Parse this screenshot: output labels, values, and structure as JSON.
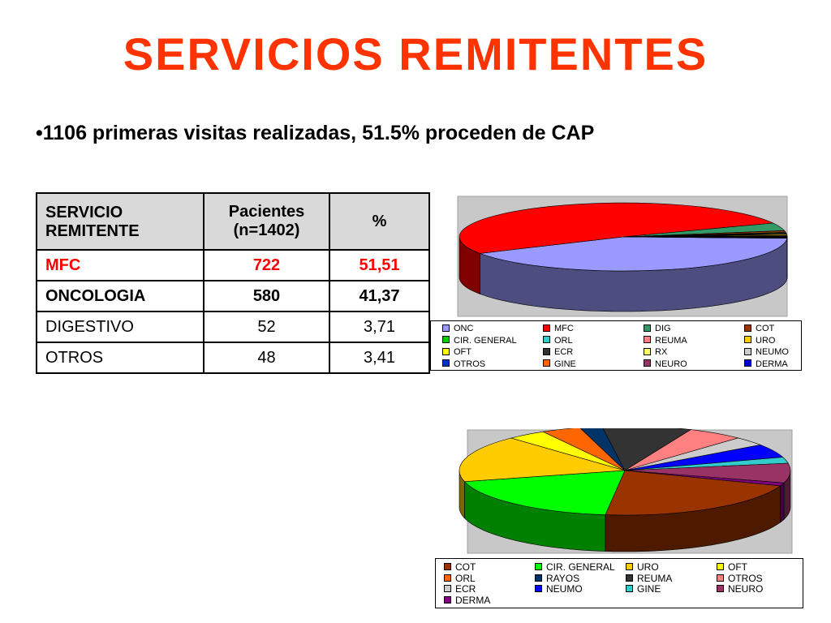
{
  "title": "SERVICIOS REMITENTES",
  "bullet": "•1106 primeras visitas realizadas,  51.5% proceden de CAP",
  "table": {
    "headers": [
      "SERVICIO REMITENTE",
      "Pacientes (n=1402)",
      "%"
    ],
    "rows": [
      {
        "servicio": "MFC",
        "pacientes": "722",
        "pct": "51,51",
        "style": "red"
      },
      {
        "servicio": "ONCOLOGIA",
        "pacientes": "580",
        "pct": "41,37",
        "style": "bold"
      },
      {
        "servicio": "DIGESTIVO",
        "pacientes": "52",
        "pct": "3,71",
        "style": ""
      },
      {
        "servicio": "OTROS",
        "pacientes": "48",
        "pct": "3,41",
        "style": ""
      }
    ]
  },
  "chart_data": [
    {
      "type": "pie",
      "title": "",
      "categories": [
        "ONC",
        "MFC",
        "DIG",
        "COT",
        "CIR. GENERAL",
        "ORL",
        "REUMA",
        "URO",
        "OFT",
        "ECR",
        "RX",
        "NEUMO",
        "OTROS",
        "GINE",
        "NEURO",
        "DERMA"
      ],
      "values": [
        41.37,
        51.51,
        3.71,
        0.8,
        0.4,
        0.3,
        0.3,
        0.5,
        0.3,
        0.2,
        0.2,
        0.2,
        0.1,
        0.1,
        0.1,
        0.08
      ],
      "colors": [
        "#9999ff",
        "#ff0000",
        "#339966",
        "#993300",
        "#00cc00",
        "#33cccc",
        "#ff8080",
        "#ffcc00",
        "#ffff00",
        "#333333",
        "#ffff66",
        "#cccccc",
        "#0033cc",
        "#ff6600",
        "#993366",
        "#0000cc"
      ],
      "legend_position": "bottom"
    },
    {
      "type": "pie",
      "title": "",
      "categories": [
        "COT",
        "CIR. GENERAL",
        "URO",
        "OFT",
        "ORL",
        "RAYOS",
        "REUMA",
        "OTROS",
        "ECR",
        "NEUMO",
        "GINE",
        "NEURO",
        "DERMA"
      ],
      "values": [
        19.5,
        17.5,
        15.5,
        3.5,
        3.5,
        2.0,
        8.0,
        5.0,
        3.0,
        4.5,
        2.0,
        6.5,
        1.0
      ],
      "colors": [
        "#993300",
        "#00ff00",
        "#ffcc00",
        "#ffff00",
        "#ff6600",
        "#003366",
        "#333333",
        "#ff8080",
        "#cccccc",
        "#0000ff",
        "#33cccc",
        "#993366",
        "#800080"
      ],
      "legend_position": "bottom"
    }
  ]
}
